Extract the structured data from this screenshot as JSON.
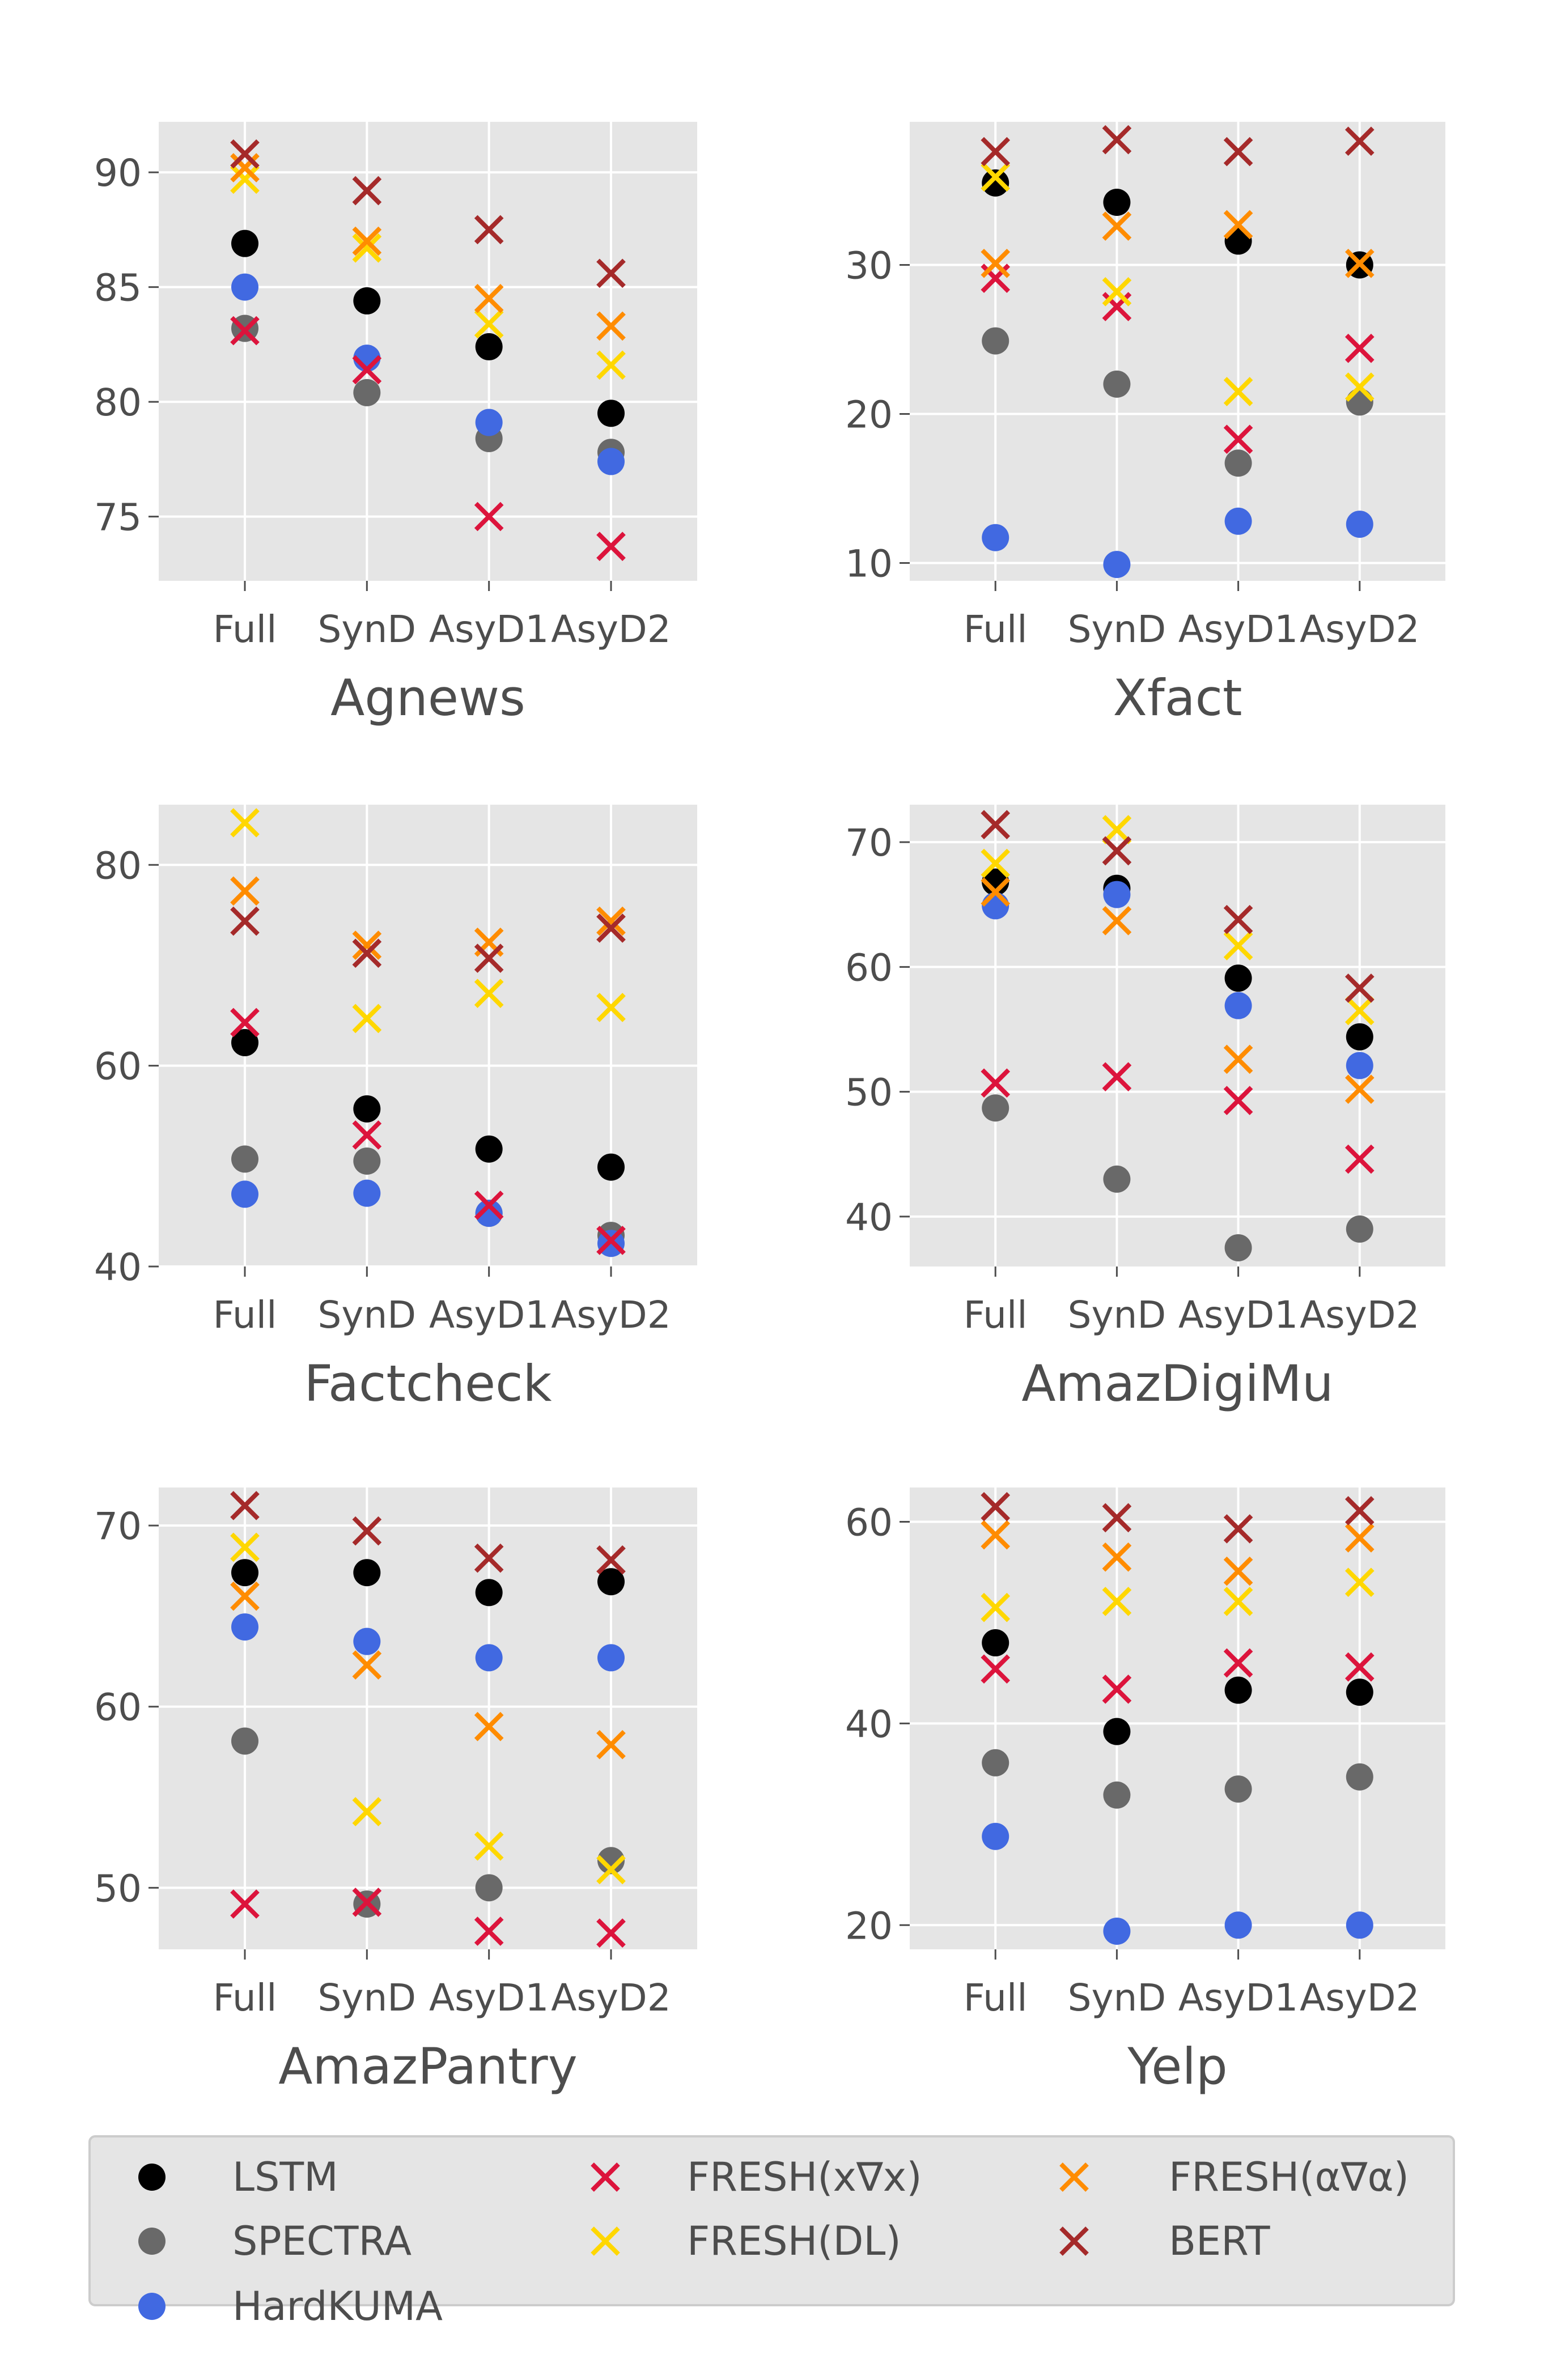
{
  "style": {
    "panel_bg": "#e5e5e5",
    "grid_color": "#ffffff",
    "text_color": "#4d4d4d",
    "legend_bg": "#e5e5e5"
  },
  "legend": {
    "placement": "bottom",
    "entries": [
      {
        "key": "lstm",
        "label": "LSTM",
        "marker": "circle",
        "color": "#000000"
      },
      {
        "key": "spectra",
        "label": "SPECTRA",
        "marker": "circle",
        "color": "#696969"
      },
      {
        "key": "hardkuma",
        "label": "HardKUMA",
        "marker": "circle",
        "color": "#4169e1"
      },
      {
        "key": "fresh_xgx",
        "label": "FRESH(x∇x)",
        "marker": "x",
        "color": "#dc143c"
      },
      {
        "key": "fresh_dl",
        "label": "FRESH(DL)",
        "marker": "x",
        "color": "#ffd700"
      },
      {
        "key": "fresh_aga",
        "label": "FRESH(α∇α)",
        "marker": "x",
        "color": "#ff8c00"
      },
      {
        "key": "bert",
        "label": "BERT",
        "marker": "x",
        "color": "#a52a2a"
      }
    ]
  },
  "chart_data": [
    {
      "type": "scatter",
      "xlabel": "Agnews",
      "categories": [
        "Full",
        "SynD",
        "AsyD1",
        "AsyD2"
      ],
      "ylim": [
        72.2,
        92.2
      ],
      "yticks": [
        75,
        80,
        85,
        90
      ],
      "grid": true,
      "series": [
        {
          "name": "LSTM",
          "values": [
            86.9,
            84.4,
            82.4,
            79.5
          ]
        },
        {
          "name": "SPECTRA",
          "values": [
            83.2,
            80.4,
            78.4,
            77.8
          ]
        },
        {
          "name": "HardKUMA",
          "values": [
            85.0,
            81.9,
            79.1,
            77.4
          ]
        },
        {
          "name": "FRESH(x∇x)",
          "values": [
            83.1,
            81.4,
            75.0,
            73.7
          ]
        },
        {
          "name": "FRESH(DL)",
          "values": [
            89.7,
            86.7,
            83.4,
            81.6
          ]
        },
        {
          "name": "FRESH(α∇α)",
          "values": [
            90.2,
            87.0,
            84.5,
            83.3
          ]
        },
        {
          "name": "BERT",
          "values": [
            90.8,
            89.2,
            87.5,
            85.6
          ]
        }
      ]
    },
    {
      "type": "scatter",
      "xlabel": "Xfact",
      "categories": [
        "Full",
        "SynD",
        "AsyD1",
        "AsyD2"
      ],
      "ylim": [
        8.8,
        39.6
      ],
      "yticks": [
        10,
        20,
        30
      ],
      "grid": true,
      "series": [
        {
          "name": "LSTM",
          "values": [
            35.5,
            34.2,
            31.6,
            30.0
          ]
        },
        {
          "name": "SPECTRA",
          "values": [
            24.9,
            22.0,
            16.7,
            20.8
          ]
        },
        {
          "name": "HardKUMA",
          "values": [
            11.7,
            9.9,
            12.8,
            12.6
          ]
        },
        {
          "name": "FRESH(x∇x)",
          "values": [
            29.1,
            27.2,
            18.3,
            24.4
          ]
        },
        {
          "name": "FRESH(DL)",
          "values": [
            35.9,
            28.2,
            21.5,
            21.8
          ]
        },
        {
          "name": "FRESH(α∇α)",
          "values": [
            30.1,
            32.6,
            32.7,
            30.1
          ]
        },
        {
          "name": "BERT",
          "values": [
            37.6,
            38.4,
            37.6,
            38.3
          ]
        }
      ]
    },
    {
      "type": "scatter",
      "xlabel": "Factcheck",
      "categories": [
        "Full",
        "SynD",
        "AsyD1",
        "AsyD2"
      ],
      "ylim": [
        40.0,
        86.0
      ],
      "yticks": [
        40,
        60,
        80
      ],
      "grid": true,
      "series": [
        {
          "name": "LSTM",
          "values": [
            62.3,
            55.7,
            51.7,
            49.9
          ]
        },
        {
          "name": "SPECTRA",
          "values": [
            50.7,
            50.5,
            45.3,
            43.1
          ]
        },
        {
          "name": "HardKUMA",
          "values": [
            47.2,
            47.3,
            45.3,
            42.3
          ]
        },
        {
          "name": "FRESH(x∇x)",
          "values": [
            64.3,
            53.1,
            46.1,
            42.6
          ]
        },
        {
          "name": "FRESH(DL)",
          "values": [
            84.2,
            64.7,
            67.2,
            65.8
          ]
        },
        {
          "name": "FRESH(α∇α)",
          "values": [
            77.4,
            72.0,
            72.3,
            74.4
          ]
        },
        {
          "name": "BERT",
          "values": [
            74.4,
            71.2,
            70.7,
            73.7
          ]
        }
      ]
    },
    {
      "type": "scatter",
      "xlabel": "AmazDigiMu",
      "categories": [
        "Full",
        "SynD",
        "AsyD1",
        "AsyD2"
      ],
      "ylim": [
        36.0,
        73.0
      ],
      "yticks": [
        40,
        50,
        60,
        70
      ],
      "grid": true,
      "series": [
        {
          "name": "LSTM",
          "values": [
            66.8,
            66.3,
            59.1,
            54.4
          ]
        },
        {
          "name": "SPECTRA",
          "values": [
            48.7,
            43.0,
            37.5,
            39.0
          ]
        },
        {
          "name": "HardKUMA",
          "values": [
            64.9,
            65.8,
            56.9,
            52.1
          ]
        },
        {
          "name": "FRESH(x∇x)",
          "values": [
            50.7,
            51.2,
            49.3,
            44.6
          ]
        },
        {
          "name": "FRESH(DL)",
          "values": [
            68.3,
            71.0,
            61.7,
            56.5
          ]
        },
        {
          "name": "FRESH(α∇α)",
          "values": [
            66.0,
            63.7,
            52.6,
            50.2
          ]
        },
        {
          "name": "BERT",
          "values": [
            71.4,
            69.3,
            63.8,
            58.3
          ]
        }
      ]
    },
    {
      "type": "scatter",
      "xlabel": "AmazPantry",
      "categories": [
        "Full",
        "SynD",
        "AsyD1",
        "AsyD2"
      ],
      "ylim": [
        46.6,
        72.1
      ],
      "yticks": [
        50,
        60,
        70
      ],
      "grid": true,
      "series": [
        {
          "name": "LSTM",
          "values": [
            67.4,
            67.4,
            66.3,
            66.9
          ]
        },
        {
          "name": "SPECTRA",
          "values": [
            58.1,
            49.1,
            50.0,
            51.5
          ]
        },
        {
          "name": "HardKUMA",
          "values": [
            64.4,
            63.6,
            62.7,
            62.7
          ]
        },
        {
          "name": "FRESH(x∇x)",
          "values": [
            49.1,
            49.2,
            47.6,
            47.5
          ]
        },
        {
          "name": "FRESH(DL)",
          "values": [
            68.8,
            54.2,
            52.3,
            51.0
          ]
        },
        {
          "name": "FRESH(α∇α)",
          "values": [
            66.1,
            62.3,
            58.9,
            57.9
          ]
        },
        {
          "name": "BERT",
          "values": [
            71.1,
            69.7,
            68.2,
            68.1
          ]
        }
      ]
    },
    {
      "type": "scatter",
      "xlabel": "Yelp",
      "categories": [
        "Full",
        "SynD",
        "AsyD1",
        "AsyD2"
      ],
      "ylim": [
        17.6,
        63.4
      ],
      "yticks": [
        20,
        40,
        60
      ],
      "grid": true,
      "series": [
        {
          "name": "LSTM",
          "values": [
            48.0,
            39.2,
            43.3,
            43.1
          ]
        },
        {
          "name": "SPECTRA",
          "values": [
            36.1,
            32.9,
            33.5,
            34.7
          ]
        },
        {
          "name": "HardKUMA",
          "values": [
            28.8,
            19.4,
            20.0,
            20.0
          ]
        },
        {
          "name": "FRESH(x∇x)",
          "values": [
            45.4,
            43.4,
            46.0,
            45.6
          ]
        },
        {
          "name": "FRESH(DL)",
          "values": [
            51.5,
            52.1,
            52.1,
            54.0
          ]
        },
        {
          "name": "FRESH(α∇α)",
          "values": [
            58.7,
            56.5,
            55.1,
            58.4
          ]
        },
        {
          "name": "BERT",
          "values": [
            61.5,
            60.4,
            59.3,
            61.1
          ]
        }
      ]
    }
  ]
}
